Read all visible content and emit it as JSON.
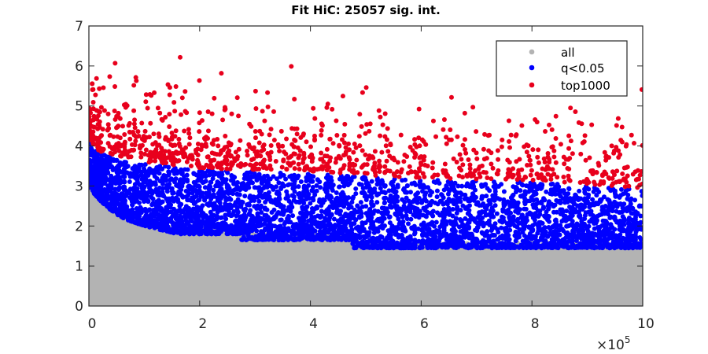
{
  "chart_data": {
    "type": "scatter",
    "title": "Fit HiC: 25057 sig. int.",
    "xlabel": "",
    "ylabel": "",
    "xlim": [
      0,
      1000000
    ],
    "ylim": [
      0,
      7
    ],
    "x_ticks": [
      0,
      200000,
      400000,
      600000,
      800000,
      1000000
    ],
    "x_tick_labels": [
      "0",
      "2",
      "4",
      "6",
      "8",
      "10"
    ],
    "x_multiplier": {
      "base": "×10",
      "exponent": "5"
    },
    "y_ticks": [
      0,
      1,
      2,
      3,
      4,
      5,
      6,
      7
    ],
    "y_tick_labels": [
      "0",
      "1",
      "2",
      "3",
      "4",
      "5",
      "6",
      "7"
    ],
    "grid": false,
    "legend_placement": "top-right",
    "series": [
      {
        "name": "all",
        "color": "#b3b3b3",
        "upper_envelope": {
          "x": [
            0,
            10000,
            30000,
            60000,
            100000,
            160000,
            275000,
            475000,
            1000000
          ],
          "y": [
            3.0,
            2.8,
            2.5,
            2.2,
            2.0,
            1.8,
            1.65,
            1.45,
            1.45
          ]
        }
      },
      {
        "name": "q<0.05",
        "color": "#0000ff",
        "upper_envelope": {
          "x": [
            0,
            20000,
            100000,
            200000,
            400000,
            600000,
            800000,
            1000000
          ],
          "y": [
            4.1,
            3.8,
            3.55,
            3.4,
            3.3,
            3.15,
            3.1,
            2.9
          ]
        }
      },
      {
        "name": "top1000",
        "color": "#e8001c",
        "count": 1000,
        "max_y": 6.7
      }
    ]
  }
}
